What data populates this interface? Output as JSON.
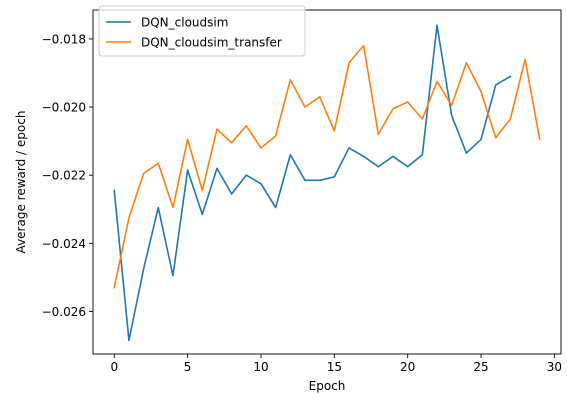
{
  "chart_data": {
    "type": "line",
    "xlabel": "Epoch",
    "ylabel": "Average reward / epoch",
    "xlim": [
      -1.45,
      30.45
    ],
    "ylim": [
      -0.02725,
      -0.01715
    ],
    "xticks": [
      0,
      5,
      10,
      15,
      20,
      25,
      30
    ],
    "xtick_labels": [
      "0",
      "5",
      "10",
      "15",
      "20",
      "25",
      "30"
    ],
    "yticks": [
      -0.026,
      -0.024,
      -0.022,
      -0.02,
      -0.018
    ],
    "ytick_labels": [
      "−0.026",
      "−0.024",
      "−0.022",
      "−0.020",
      "−0.018"
    ],
    "legend_position": "top-left",
    "grid": false,
    "series": [
      {
        "name": "DQN_cloudsim",
        "color": "#1f77b4",
        "x": [
          0,
          1,
          2,
          3,
          4,
          5,
          6,
          7,
          8,
          9,
          10,
          11,
          12,
          13,
          14,
          15,
          16,
          17,
          18,
          19,
          20,
          21,
          22,
          23,
          24,
          25,
          26,
          27
        ],
        "y": [
          -0.02245,
          -0.02685,
          -0.02475,
          -0.02295,
          -0.02495,
          -0.02185,
          -0.02315,
          -0.0218,
          -0.02255,
          -0.022,
          -0.02225,
          -0.02295,
          -0.0214,
          -0.02215,
          -0.02215,
          -0.02205,
          -0.0212,
          -0.02145,
          -0.02175,
          -0.02145,
          -0.02175,
          -0.0214,
          -0.0176,
          -0.02025,
          -0.02135,
          -0.02095,
          -0.01935,
          -0.0191
        ]
      },
      {
        "name": "DQN_cloudsim_transfer",
        "color": "#ff7f0e",
        "x": [
          0,
          1,
          2,
          3,
          4,
          5,
          6,
          7,
          8,
          9,
          10,
          11,
          12,
          13,
          14,
          15,
          16,
          17,
          18,
          19,
          20,
          21,
          22,
          23,
          24,
          25,
          26,
          27,
          28,
          29
        ],
        "y": [
          -0.0253,
          -0.02325,
          -0.02195,
          -0.02165,
          -0.02295,
          -0.02095,
          -0.02245,
          -0.02065,
          -0.02105,
          -0.02055,
          -0.0212,
          -0.02085,
          -0.0192,
          -0.02,
          -0.0197,
          -0.0207,
          -0.0187,
          -0.0182,
          -0.0208,
          -0.02005,
          -0.01985,
          -0.02035,
          -0.01925,
          -0.01995,
          -0.0187,
          -0.01955,
          -0.0209,
          -0.02035,
          -0.0186,
          -0.02095
        ]
      }
    ]
  }
}
